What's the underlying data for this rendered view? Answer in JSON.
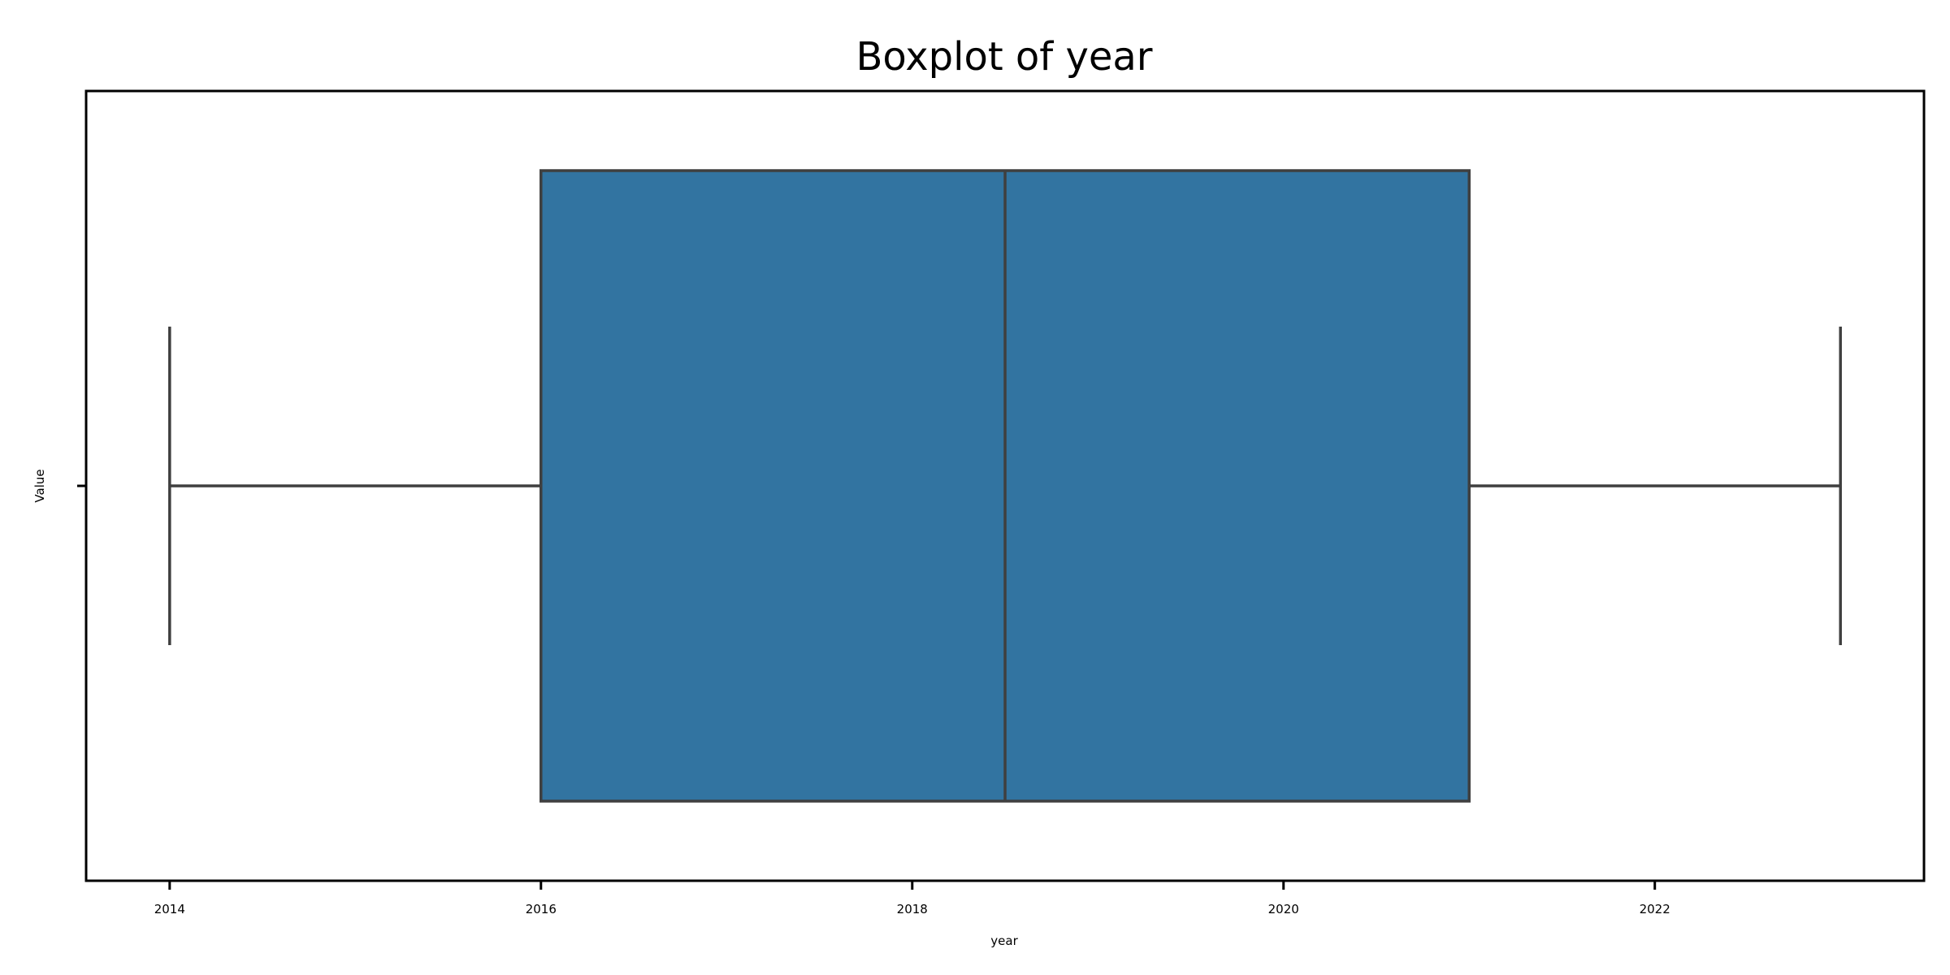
{
  "chart_data": {
    "type": "box",
    "title": "Boxplot of year",
    "xlabel": "year",
    "ylabel": "Value",
    "orientation": "horizontal",
    "xlim": [
      2013.55,
      2023.45
    ],
    "xticks": [
      2014,
      2016,
      2018,
      2020,
      2022
    ],
    "xtick_labels": [
      "2014",
      "2016",
      "2018",
      "2020",
      "2022"
    ],
    "yticks": [
      ""
    ],
    "series": [
      {
        "min": 2014,
        "q1": 2016,
        "median": 2018.5,
        "q3": 2021,
        "max": 2023
      }
    ],
    "grid": false,
    "colors": {
      "box_fill": "#3274a1",
      "line": "#3f3f3f",
      "frame": "#000000"
    }
  }
}
